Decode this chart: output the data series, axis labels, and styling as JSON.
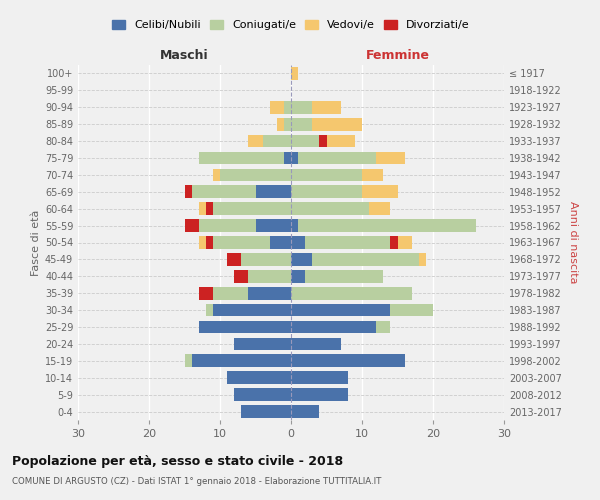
{
  "age_groups": [
    "100+",
    "95-99",
    "90-94",
    "85-89",
    "80-84",
    "75-79",
    "70-74",
    "65-69",
    "60-64",
    "55-59",
    "50-54",
    "45-49",
    "40-44",
    "35-39",
    "30-34",
    "25-29",
    "20-24",
    "15-19",
    "10-14",
    "5-9",
    "0-4"
  ],
  "birth_years": [
    "≤ 1917",
    "1918-1922",
    "1923-1927",
    "1928-1932",
    "1933-1937",
    "1938-1942",
    "1943-1947",
    "1948-1952",
    "1953-1957",
    "1958-1962",
    "1963-1967",
    "1968-1972",
    "1973-1977",
    "1978-1982",
    "1983-1987",
    "1988-1992",
    "1993-1997",
    "1998-2002",
    "2003-2007",
    "2008-2012",
    "2013-2017"
  ],
  "colors": {
    "celibi": "#4a72aa",
    "coniugati": "#b8cfa0",
    "vedovi": "#f5c76e",
    "divorziati": "#cc2222"
  },
  "legend_labels": [
    "Celibi/Nubili",
    "Coniugati/e",
    "Vedovi/e",
    "Divorziati/e"
  ],
  "maschi": {
    "celibi": [
      0,
      0,
      0,
      0,
      0,
      1,
      0,
      5,
      0,
      5,
      3,
      0,
      0,
      6,
      11,
      13,
      8,
      14,
      9,
      8,
      7
    ],
    "coniugati": [
      0,
      0,
      1,
      1,
      4,
      12,
      10,
      9,
      11,
      8,
      8,
      7,
      6,
      5,
      1,
      0,
      0,
      1,
      0,
      0,
      0
    ],
    "vedovi": [
      0,
      0,
      2,
      1,
      2,
      0,
      1,
      0,
      1,
      0,
      1,
      0,
      0,
      0,
      0,
      0,
      0,
      0,
      0,
      0,
      0
    ],
    "divorziati": [
      0,
      0,
      0,
      0,
      0,
      0,
      0,
      1,
      1,
      2,
      1,
      2,
      2,
      2,
      0,
      0,
      0,
      0,
      0,
      0,
      0
    ]
  },
  "femmine": {
    "celibi": [
      0,
      0,
      0,
      0,
      0,
      1,
      0,
      0,
      0,
      1,
      2,
      3,
      2,
      0,
      14,
      12,
      7,
      16,
      8,
      8,
      4
    ],
    "coniugati": [
      0,
      0,
      3,
      3,
      4,
      11,
      10,
      10,
      11,
      25,
      12,
      15,
      11,
      17,
      6,
      2,
      0,
      0,
      0,
      0,
      0
    ],
    "vedovi": [
      1,
      0,
      4,
      7,
      4,
      4,
      3,
      5,
      3,
      0,
      2,
      1,
      0,
      0,
      0,
      0,
      0,
      0,
      0,
      0,
      0
    ],
    "divorziati": [
      0,
      0,
      0,
      0,
      1,
      0,
      0,
      0,
      0,
      0,
      1,
      0,
      0,
      0,
      0,
      0,
      0,
      0,
      0,
      0,
      0
    ]
  },
  "title": "Popolazione per età, sesso e stato civile - 2018",
  "subtitle": "COMUNE DI ARGUSTO (CZ) - Dati ISTAT 1° gennaio 2018 - Elaborazione TUTTITALIA.IT",
  "xlabel_left": "Maschi",
  "xlabel_right": "Femmine",
  "ylabel_left": "Fasce di età",
  "ylabel_right": "Anni di nascita",
  "xlim": 30,
  "background_color": "#f0f0f0",
  "bar_height": 0.75
}
